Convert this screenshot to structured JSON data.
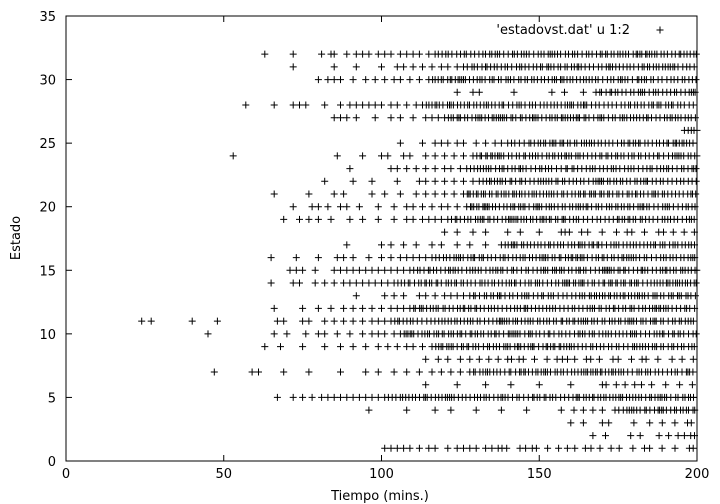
{
  "chart_data": {
    "type": "scatter",
    "title": "",
    "xlabel": "Tiempo (mins.)",
    "ylabel": "Estado",
    "xlim": [
      0,
      200
    ],
    "ylim": [
      0,
      35
    ],
    "xticks": [
      0,
      50,
      100,
      150,
      200
    ],
    "yticks": [
      0,
      5,
      10,
      15,
      20,
      25,
      30,
      35
    ],
    "grid": false,
    "legend_position": "top-right",
    "marker": "plus",
    "color": "#000000",
    "series": [
      {
        "name": "'estadovst.dat' u 1:2",
        "states": [
          {
            "y": 32,
            "onset": 63,
            "sparse": [
              63,
              72,
              81,
              84,
              85,
              89,
              92,
              94,
              96,
              99,
              101,
              103,
              106,
              108,
              110,
              112,
              115,
              117,
              118
            ]
          },
          {
            "y": 31,
            "onset": 72,
            "sparse": [
              72,
              85,
              92,
              100,
              105,
              107,
              110,
              113,
              116,
              119,
              121,
              124,
              126
            ]
          },
          {
            "y": 30,
            "onset": 80,
            "sparse": [
              80,
              83,
              85,
              87,
              91,
              95,
              98,
              101,
              104,
              106,
              109,
              112,
              115
            ]
          },
          {
            "y": 29,
            "onset": 124,
            "sparse": [
              124,
              129,
              131,
              142,
              154,
              158,
              164,
              168
            ]
          },
          {
            "y": 28,
            "onset": 57,
            "sparse": [
              57,
              66,
              72,
              74,
              76,
              82,
              87,
              90,
              92,
              94,
              96,
              98,
              100,
              103,
              105,
              108,
              111,
              113
            ]
          },
          {
            "y": 27,
            "onset": 85,
            "sparse": [
              85,
              87,
              89,
              92,
              98,
              103,
              106,
              110,
              114,
              116,
              118,
              120
            ]
          },
          {
            "y": 26,
            "onset": 196,
            "sparse": [
              196
            ]
          },
          {
            "y": 25,
            "onset": 106,
            "sparse": [
              106,
              113,
              117,
              119,
              121,
              124,
              126,
              130,
              133,
              136,
              138,
              140
            ]
          },
          {
            "y": 24,
            "onset": 53,
            "sparse": [
              53,
              86,
              94,
              100,
              102,
              107,
              109,
              114,
              117,
              120,
              123,
              126,
              129
            ]
          },
          {
            "y": 23,
            "onset": 90,
            "sparse": [
              90,
              103,
              105,
              108,
              111,
              114,
              117,
              120,
              122,
              125,
              127
            ]
          },
          {
            "y": 22,
            "onset": 82,
            "sparse": [
              82,
              91,
              97,
              105,
              112,
              114,
              117,
              120,
              123,
              126,
              129,
              131
            ]
          },
          {
            "y": 21,
            "onset": 66,
            "sparse": [
              66,
              77,
              85,
              88,
              97,
              101,
              106,
              111,
              114,
              117,
              120,
              123,
              126
            ]
          },
          {
            "y": 20,
            "onset": 72,
            "sparse": [
              72,
              78,
              80,
              83,
              87,
              89,
              93,
              99,
              104,
              108,
              110,
              113,
              116,
              119,
              121,
              124,
              127
            ]
          },
          {
            "y": 19,
            "onset": 69,
            "sparse": [
              69,
              74,
              77,
              80,
              84,
              90,
              94,
              99,
              104,
              108,
              110,
              113,
              115,
              117,
              119,
              121
            ]
          },
          {
            "y": 18,
            "onset": 120,
            "sparse": [
              120,
              124,
              129,
              133,
              140,
              144,
              150,
              157
            ]
          },
          {
            "y": 17,
            "onset": 89,
            "sparse": [
              89,
              100,
              103,
              107,
              111,
              116,
              119,
              124,
              128,
              133,
              138
            ]
          },
          {
            "y": 16,
            "onset": 65,
            "sparse": [
              65,
              73,
              80,
              86,
              88,
              91,
              96,
              100,
              103,
              106,
              108,
              110,
              112,
              114,
              116
            ]
          },
          {
            "y": 15,
            "onset": 71,
            "sparse": [
              71,
              73,
              75,
              79,
              85,
              87,
              89,
              91,
              93,
              95,
              97,
              99,
              101,
              103,
              105,
              107,
              109
            ]
          },
          {
            "y": 14,
            "onset": 65,
            "sparse": [
              65,
              72,
              74,
              79,
              82,
              85,
              88,
              90,
              92,
              94,
              96,
              98,
              100,
              102,
              104
            ]
          },
          {
            "y": 13,
            "onset": 92,
            "sparse": [
              92,
              101,
              104,
              107,
              112,
              114,
              117,
              120,
              122,
              124,
              126,
              128
            ]
          },
          {
            "y": 12,
            "onset": 66,
            "sparse": [
              66,
              75,
              80,
              84,
              88,
              91,
              94,
              97,
              100,
              103,
              105,
              107,
              109
            ]
          },
          {
            "y": 11,
            "onset": 24,
            "sparse": [
              24,
              27,
              40,
              48,
              67,
              69,
              75,
              77,
              82,
              85,
              88,
              91,
              94,
              97,
              99,
              101,
              103
            ]
          },
          {
            "y": 10,
            "onset": 45,
            "sparse": [
              45,
              66,
              70,
              76,
              80,
              82,
              86,
              90,
              94,
              97,
              99,
              101,
              104,
              106
            ]
          },
          {
            "y": 9,
            "onset": 63,
            "sparse": [
              63,
              68,
              75,
              82,
              87,
              91,
              95,
              99,
              102,
              105,
              108,
              110,
              113,
              116
            ]
          },
          {
            "y": 8,
            "onset": 114,
            "sparse": [
              114,
              118,
              121,
              125,
              128,
              131,
              134,
              137,
              140
            ]
          },
          {
            "y": 7,
            "onset": 47,
            "sparse": [
              47,
              59,
              61,
              69,
              77,
              87,
              95,
              99,
              104,
              108,
              112,
              116,
              119,
              122,
              125,
              128
            ]
          },
          {
            "y": 6,
            "onset": 114,
            "sparse": [
              114,
              124,
              133,
              141,
              150,
              160,
              170
            ]
          },
          {
            "y": 5,
            "onset": 67,
            "sparse": [
              67,
              72,
              75,
              78,
              81,
              83,
              85,
              87,
              89,
              91,
              93,
              95,
              97,
              99,
              101
            ]
          },
          {
            "y": 4,
            "onset": 96,
            "sparse": [
              96,
              108,
              117,
              122,
              130,
              138,
              146,
              157,
              161,
              164,
              167,
              170,
              174
            ]
          },
          {
            "y": 3,
            "onset": 160,
            "sparse": [
              160,
              164,
              170,
              172,
              180,
              185,
              189,
              193,
              197
            ]
          },
          {
            "y": 2,
            "onset": 167,
            "sparse": [
              167,
              171,
              179,
              182,
              188,
              191,
              194,
              196,
              198
            ]
          },
          {
            "y": 1,
            "onset": 101,
            "sparse": [
              101,
              103,
              105,
              107,
              109,
              112,
              115,
              117,
              121,
              124,
              126,
              128,
              130,
              133,
              135,
              137
            ]
          }
        ]
      }
    ]
  }
}
